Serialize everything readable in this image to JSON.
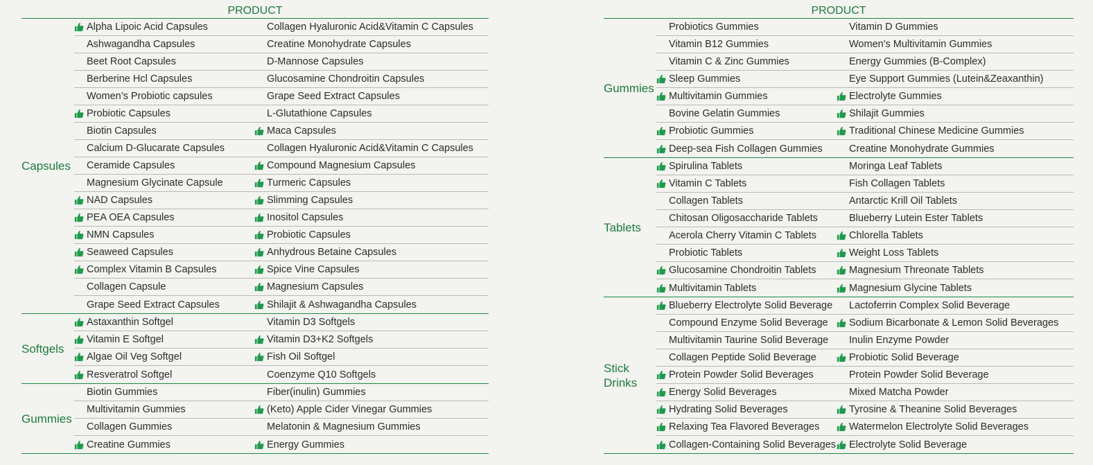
{
  "colors": {
    "accent": "#1e8a44",
    "icon": "#1f9a4c"
  },
  "icons": {
    "recommended": "thumbs-up-icon"
  },
  "left": {
    "header": "PRODUCT",
    "sections": [
      {
        "category": "Capsules",
        "rows": [
          [
            {
              "t": "Alpha Lipoic Acid Capsules",
              "i": true
            },
            {
              "t": "Collagen Hyaluronic Acid&Vitamin C Capsules",
              "i": false
            }
          ],
          [
            {
              "t": "Ashwagandha Capsules",
              "i": false
            },
            {
              "t": "Creatine Monohydrate Capsules",
              "i": false
            }
          ],
          [
            {
              "t": "Beet Root Capsules",
              "i": false
            },
            {
              "t": "D-Mannose Capsules",
              "i": false
            }
          ],
          [
            {
              "t": "Berberine Hcl Capsules",
              "i": false
            },
            {
              "t": "Glucosamine Chondroitin Capsules",
              "i": false
            }
          ],
          [
            {
              "t": "Women’s Probiotic capsules",
              "i": false
            },
            {
              "t": "Grape Seed Extract Capsules",
              "i": false
            }
          ],
          [
            {
              "t": "Probiotic Capsules",
              "i": true
            },
            {
              "t": "L-Glutathione Capsules",
              "i": false
            }
          ],
          [
            {
              "t": "Biotin Capsules",
              "i": false
            },
            {
              "t": "Maca Capsules",
              "i": true
            }
          ],
          [
            {
              "t": "Calcium D-Glucarate Capsules",
              "i": false
            },
            {
              "t": "Collagen Hyaluronic Acid&Vitamin C Capsules",
              "i": false
            }
          ],
          [
            {
              "t": "Ceramide Capsules",
              "i": false
            },
            {
              "t": "Compound Magnesium Capsules",
              "i": true
            }
          ],
          [
            {
              "t": "Magnesium Glycinate Capsule",
              "i": false
            },
            {
              "t": "Turmeric Capsules",
              "i": true
            }
          ],
          [
            {
              "t": "NAD Capsules",
              "i": true
            },
            {
              "t": "Slimming Capsules",
              "i": true
            }
          ],
          [
            {
              "t": "PEA OEA Capsules",
              "i": true
            },
            {
              "t": "Inositol Capsules",
              "i": true
            }
          ],
          [
            {
              "t": "NMN Capsules",
              "i": true
            },
            {
              "t": "Probiotic Capsules",
              "i": true
            }
          ],
          [
            {
              "t": "Seaweed Capsules",
              "i": true
            },
            {
              "t": "Anhydrous Betaine Capsules",
              "i": true
            }
          ],
          [
            {
              "t": "Complex Vitamin B Capsules",
              "i": true
            },
            {
              "t": "Spice Vine Capsules",
              "i": true
            }
          ],
          [
            {
              "t": "Collagen Capsule",
              "i": false
            },
            {
              "t": "Magnesium Capsules",
              "i": true
            }
          ],
          [
            {
              "t": "Grape Seed Extract Capsules",
              "i": false
            },
            {
              "t": "Shilajit & Ashwagandha Capsules",
              "i": true
            }
          ]
        ]
      },
      {
        "category": "Softgels",
        "rows": [
          [
            {
              "t": "Astaxanthin Softgel",
              "i": true
            },
            {
              "t": "Vitamin D3 Softgels",
              "i": false
            }
          ],
          [
            {
              "t": "Vitamin E Softgel",
              "i": true
            },
            {
              "t": "Vitamin D3+K2 Softgels",
              "i": true
            }
          ],
          [
            {
              "t": "Algae Oil Veg Softgel",
              "i": true
            },
            {
              "t": "Fish Oil Softgel",
              "i": true
            }
          ],
          [
            {
              "t": "Resveratrol Softgel",
              "i": true
            },
            {
              "t": "Coenzyme Q10 Softgels",
              "i": false
            }
          ]
        ]
      },
      {
        "category": "Gummies",
        "rows": [
          [
            {
              "t": "Biotin Gummies",
              "i": false
            },
            {
              "t": "Fiber(inulin) Gummies",
              "i": false
            }
          ],
          [
            {
              "t": "Multivitamin Gummies",
              "i": false
            },
            {
              "t": "(Keto) Apple Cider Vinegar Gummies",
              "i": true
            }
          ],
          [
            {
              "t": "Collagen Gummies",
              "i": false
            },
            {
              "t": "Melatonin & Magnesium Gummies",
              "i": false
            }
          ],
          [
            {
              "t": "Creatine Gummies",
              "i": true
            },
            {
              "t": "Energy Gummies",
              "i": true
            }
          ]
        ]
      }
    ]
  },
  "right": {
    "header": "PRODUCT",
    "sections": [
      {
        "category": "Gummies",
        "rows": [
          [
            {
              "t": "Probiotics Gummies",
              "i": false
            },
            {
              "t": "Vitamin D Gummies",
              "i": false
            }
          ],
          [
            {
              "t": "Vitamin B12 Gummies",
              "i": false
            },
            {
              "t": "Women's Multivitamin Gummies",
              "i": false
            }
          ],
          [
            {
              "t": "Vitamin C & Zinc Gummies",
              "i": false
            },
            {
              "t": "Energy Gummies (B-Complex)",
              "i": false
            }
          ],
          [
            {
              "t": "Sleep Gummies",
              "i": true
            },
            {
              "t": "Eye Support Gummies (Lutein&Zeaxanthin)",
              "i": false
            }
          ],
          [
            {
              "t": "Multivitamin Gummies",
              "i": true
            },
            {
              "t": "Electrolyte Gummies",
              "i": true
            }
          ],
          [
            {
              "t": "Bovine Gelatin Gummies",
              "i": false
            },
            {
              "t": "Shilajit Gummies",
              "i": true
            }
          ],
          [
            {
              "t": "Probiotic Gummies",
              "i": true
            },
            {
              "t": "Traditional Chinese Medicine Gummies",
              "i": true
            }
          ],
          [
            {
              "t": "Deep-sea Fish Collagen Gummies",
              "i": true
            },
            {
              "t": "Creatine Monohydrate Gummies",
              "i": false
            }
          ]
        ]
      },
      {
        "category": "Tablets",
        "rows": [
          [
            {
              "t": "Spirulina Tablets",
              "i": true
            },
            {
              "t": "Moringa Leaf Tablets",
              "i": false
            }
          ],
          [
            {
              "t": "Vitamin C Tablets",
              "i": true
            },
            {
              "t": "Fish Collagen Tablets",
              "i": false
            }
          ],
          [
            {
              "t": "Collagen Tablets",
              "i": false
            },
            {
              "t": "Antarctic Krill Oil Tablets",
              "i": false
            }
          ],
          [
            {
              "t": "Chitosan Oligosaccharide Tablets",
              "i": false
            },
            {
              "t": "Blueberry Lutein Ester Tablets",
              "i": false
            }
          ],
          [
            {
              "t": "Acerola Cherry Vitamin C Tablets",
              "i": false
            },
            {
              "t": "Chlorella Tablets",
              "i": true
            }
          ],
          [
            {
              "t": "Probiotic Tablets",
              "i": false
            },
            {
              "t": "Weight Loss Tablets",
              "i": true
            }
          ],
          [
            {
              "t": "Glucosamine Chondroitin Tablets",
              "i": true
            },
            {
              "t": "Magnesium Threonate Tablets",
              "i": true
            }
          ],
          [
            {
              "t": "Multivitamin Tablets",
              "i": true
            },
            {
              "t": "Magnesium Glycine Tablets",
              "i": true
            }
          ]
        ]
      },
      {
        "category": "Stick\nDrinks",
        "rows": [
          [
            {
              "t": "Blueberry Electrolyte Solid Beverage",
              "i": true
            },
            {
              "t": "Lactoferrin Complex Solid Beverage",
              "i": false
            }
          ],
          [
            {
              "t": "Compound Enzyme Solid Beverage",
              "i": false
            },
            {
              "t": "Sodium Bicarbonate & Lemon Solid Beverages",
              "i": true
            }
          ],
          [
            {
              "t": "Multivitamin Taurine Solid Beverage",
              "i": false
            },
            {
              "t": "Inulin Enzyme Powder",
              "i": false
            }
          ],
          [
            {
              "t": "Collagen Peptide Solid Beverage",
              "i": false
            },
            {
              "t": "Probiotic Solid Beverage",
              "i": true
            }
          ],
          [
            {
              "t": "Protein Powder Solid Beverages",
              "i": true
            },
            {
              "t": "Protein Powder Solid Beverage",
              "i": false
            }
          ],
          [
            {
              "t": "Energy Solid Beverages",
              "i": true
            },
            {
              "t": "Mixed Matcha Powder",
              "i": false
            }
          ],
          [
            {
              "t": "Hydrating Solid Beverages",
              "i": true
            },
            {
              "t": "Tyrosine & Theanine Solid Beverages",
              "i": true
            }
          ],
          [
            {
              "t": "Relaxing Tea Flavored Beverages",
              "i": true
            },
            {
              "t": "Watermelon Electrolyte Solid Beverages",
              "i": true
            }
          ],
          [
            {
              "t": "Collagen-Containing Solid Beverages",
              "i": true
            },
            {
              "t": "Electrolyte Solid Beverage",
              "i": true
            }
          ]
        ]
      }
    ]
  }
}
